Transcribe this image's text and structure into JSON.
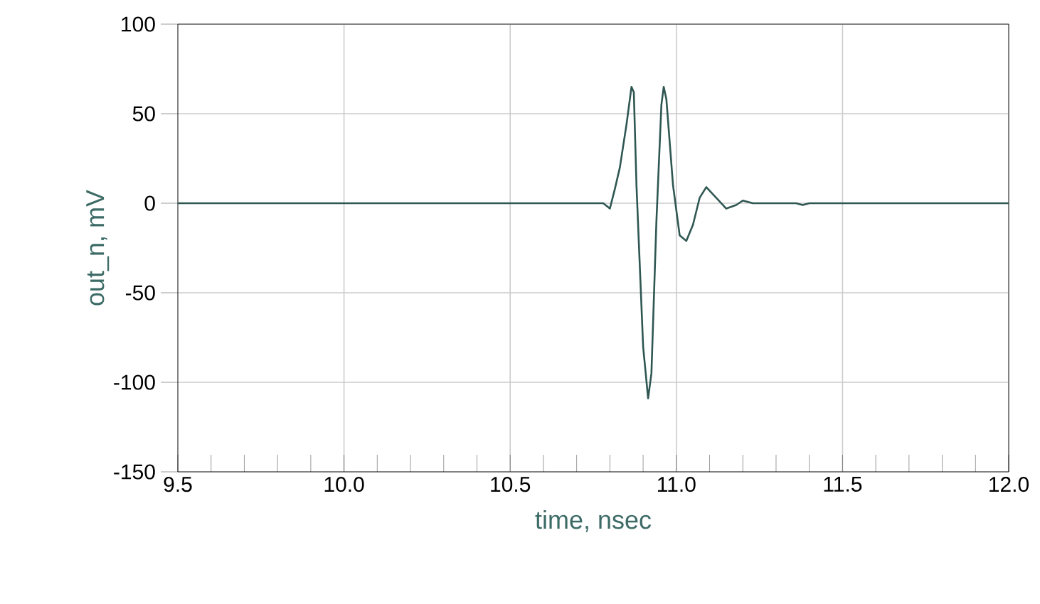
{
  "chart_data": {
    "type": "line",
    "xlabel": "time, nsec",
    "ylabel": "out_n, mV",
    "xlim": [
      9.5,
      12.0
    ],
    "ylim": [
      -150,
      100
    ],
    "xticks": [
      {
        "value": 9.5,
        "label": "9.5"
      },
      {
        "value": 10.0,
        "label": "10.0"
      },
      {
        "value": 10.5,
        "label": "10.5"
      },
      {
        "value": 11.0,
        "label": "11.0"
      },
      {
        "value": 11.5,
        "label": "11.5"
      },
      {
        "value": 12.0,
        "label": "12.0"
      }
    ],
    "yticks": [
      -150,
      -100,
      -50,
      0,
      50,
      100
    ],
    "grid": true,
    "series": [
      {
        "color": "#2f5752",
        "x": [
          9.5,
          10.0,
          10.5,
          10.76,
          10.78,
          10.8,
          10.815,
          10.83,
          10.85,
          10.865,
          10.872,
          10.88,
          10.9,
          10.915,
          10.925,
          10.94,
          10.955,
          10.962,
          10.97,
          10.99,
          11.01,
          11.03,
          11.05,
          11.07,
          11.09,
          11.12,
          11.15,
          11.18,
          11.2,
          11.23,
          11.3,
          11.36,
          11.38,
          11.4,
          11.5,
          12.0
        ],
        "values": [
          0,
          0,
          0,
          0,
          0,
          -3,
          8,
          20,
          44,
          65,
          62,
          10,
          -80,
          -109,
          -95,
          -10,
          55,
          65,
          58,
          10,
          -18,
          -21,
          -12,
          3,
          9,
          3,
          -3,
          -1,
          1.5,
          0,
          0,
          0,
          -1,
          0,
          0,
          0
        ]
      }
    ]
  }
}
